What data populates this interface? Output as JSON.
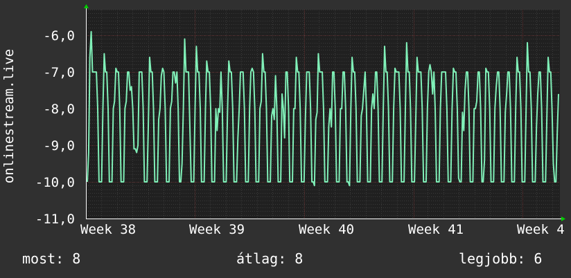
{
  "chart_data": {
    "type": "line",
    "ylabel": "onlinestream.live",
    "ylim": [
      -11.0,
      -5.3
    ],
    "y_ticks": [
      -6.0,
      -7.0,
      -8.0,
      -9.0,
      -10.0,
      -11.0
    ],
    "y_tick_labels": [
      "-6,0",
      "-7,0",
      "-8,0",
      "-9,0",
      "-10,0",
      "-11,0"
    ],
    "x_ticks": [
      "Week 38",
      "Week 39",
      "Week 40",
      "Week 41",
      "Week 4"
    ],
    "grid": true,
    "colors": {
      "background": "#303030",
      "plot_bg": "#202020",
      "line": "#80f0b8",
      "grid_minor": "#3a3a3a",
      "grid_major": "#5a2a2a",
      "axis_arrow": "#00cc00"
    },
    "series": [
      {
        "values": [
          -10.0,
          -9.2,
          -6.6,
          -5.9,
          -7.0,
          -7.0,
          -7.0,
          -7.0,
          -8.0,
          -10.0,
          -10.0,
          -10.0,
          -8.0,
          -6.5,
          -7.0,
          -7.0,
          -8.0,
          -10.0,
          -10.0,
          -10.0,
          -8.0,
          -7.8,
          -6.9,
          -7.0,
          -7.0,
          -8.0,
          -10.0,
          -10.0,
          -10.0,
          -8.0,
          -7.8,
          -7.0,
          -7.0,
          -7.5,
          -7.4,
          -8.0,
          -9.1,
          -9.1,
          -9.2,
          -9.0,
          -7.0,
          -7.0,
          -7.0,
          -8.0,
          -10.0,
          -10.0,
          -10.0,
          -8.5,
          -6.6,
          -7.0,
          -7.0,
          -8.0,
          -10.0,
          -10.0,
          -10.0,
          -8.3,
          -8.0,
          -7.1,
          -6.9,
          -7.0,
          -8.0,
          -10.0,
          -10.0,
          -10.0,
          -8.0,
          -7.8,
          -7.0,
          -7.0,
          -7.3,
          -7.0,
          -8.0,
          -10.0,
          -10.0,
          -9.5,
          -8.0,
          -6.1,
          -7.0,
          -7.0,
          -7.0,
          -8.5,
          -10.0,
          -10.0,
          -10.0,
          -8.0,
          -6.3,
          -7.0,
          -7.0,
          -8.0,
          -10.0,
          -10.0,
          -10.0,
          -8.0,
          -6.7,
          -7.0,
          -7.0,
          -8.0,
          -10.0,
          -10.0,
          -10.0,
          -8.0,
          -8.6,
          -8.0,
          -8.1,
          -7.0,
          -8.0,
          -10.0,
          -10.0,
          -10.0,
          -8.1,
          -6.7,
          -7.0,
          -7.0,
          -8.0,
          -10.0,
          -10.0,
          -10.0,
          -8.8,
          -8.0,
          -7.0,
          -7.0,
          -7.0,
          -8.0,
          -10.0,
          -10.0,
          -10.0,
          -8.0,
          -7.0,
          -6.9,
          -7.0,
          -8.0,
          -10.0,
          -10.0,
          -10.0,
          -8.0,
          -7.8,
          -6.5,
          -7.0,
          -7.0,
          -8.0,
          -10.0,
          -10.0,
          -10.0,
          -8.2,
          -8.0,
          -8.3,
          -7.1,
          -8.0,
          -10.0,
          -10.0,
          -10.0,
          -7.6,
          -8.0,
          -8.8,
          -7.0,
          -7.0,
          -8.0,
          -10.0,
          -10.0,
          -10.0,
          -8.0,
          -8.0,
          -6.6,
          -7.0,
          -7.0,
          -8.0,
          -10.0,
          -10.0,
          -10.0,
          -8.3,
          -7.0,
          -7.0,
          -7.0,
          -8.0,
          -10.0,
          -10.0,
          -10.1,
          -8.3,
          -8.1,
          -6.5,
          -7.0,
          -7.0,
          -7.0,
          -8.0,
          -10.0,
          -10.0,
          -10.0,
          -8.5,
          -8.0,
          -8.5,
          -7.0,
          -7.0,
          -8.0,
          -10.0,
          -10.0,
          -10.0,
          -8.0,
          -8.0,
          -7.0,
          -7.0,
          -8.0,
          -10.0,
          -10.0,
          -10.1,
          -8.0,
          -6.6,
          -7.0,
          -7.0,
          -8.0,
          -10.0,
          -10.0,
          -10.0,
          -8.2,
          -8.0,
          -7.5,
          -7.0,
          -8.0,
          -10.0,
          -10.0,
          -10.0,
          -8.0,
          -7.6,
          -8.0,
          -7.0,
          -7.0,
          -8.0,
          -10.0,
          -10.0,
          -10.0,
          -8.0,
          -6.3,
          -7.0,
          -7.0,
          -8.0,
          -10.0,
          -10.0,
          -10.0,
          -8.0,
          -6.9,
          -7.0,
          -7.0,
          -7.0,
          -8.0,
          -10.0,
          -10.0,
          -10.0,
          -8.0,
          -6.2,
          -7.0,
          -7.0,
          -8.0,
          -10.0,
          -10.0,
          -10.0,
          -8.4,
          -6.6,
          -7.0,
          -7.0,
          -7.0,
          -8.0,
          -10.0,
          -10.0,
          -10.0,
          -8.0,
          -7.0,
          -6.8,
          -7.0,
          -7.6,
          -7.0,
          -8.0,
          -10.0,
          -10.0,
          -10.0,
          -8.0,
          -7.0,
          -7.0,
          -7.0,
          -7.0,
          -8.0,
          -10.0,
          -10.0,
          -10.0,
          -8.0,
          -6.9,
          -7.0,
          -7.0,
          -8.0,
          -9.9,
          -10.0,
          -10.0,
          -8.1,
          -8.6,
          -7.5,
          -7.0,
          -7.0,
          -8.0,
          -10.0,
          -10.0,
          -10.0,
          -8.0,
          -8.0,
          -7.8,
          -7.0,
          -7.0,
          -8.0,
          -10.0,
          -10.0,
          -9.4,
          -6.9,
          -7.0,
          -7.0,
          -8.0,
          -10.0,
          -10.0,
          -10.0,
          -8.0,
          -7.4,
          -7.0,
          -7.0,
          -8.0,
          -10.0,
          -10.0,
          -10.0,
          -8.1,
          -7.6,
          -7.0,
          -7.0,
          -8.0,
          -10.0,
          -10.0,
          -10.0,
          -8.0,
          -6.6,
          -7.0,
          -7.0,
          -8.0,
          -10.0,
          -10.0,
          -10.0,
          -8.0,
          -6.2,
          -7.0,
          -7.0,
          -8.0,
          -10.0,
          -10.0,
          -10.0,
          -8.5,
          -7.6,
          -7.0,
          -7.0,
          -8.0,
          -10.0,
          -10.0,
          -10.0,
          -8.3,
          -6.6,
          -7.0,
          -7.0,
          -8.0,
          -9.5,
          -10.0,
          -10.0,
          -8.7,
          -7.6
        ],
        "values_source": "estimated from gridlines"
      }
    ]
  },
  "legend": {
    "current": "most: 8",
    "average": "átlag: 8",
    "best": "legjobb: 6"
  }
}
